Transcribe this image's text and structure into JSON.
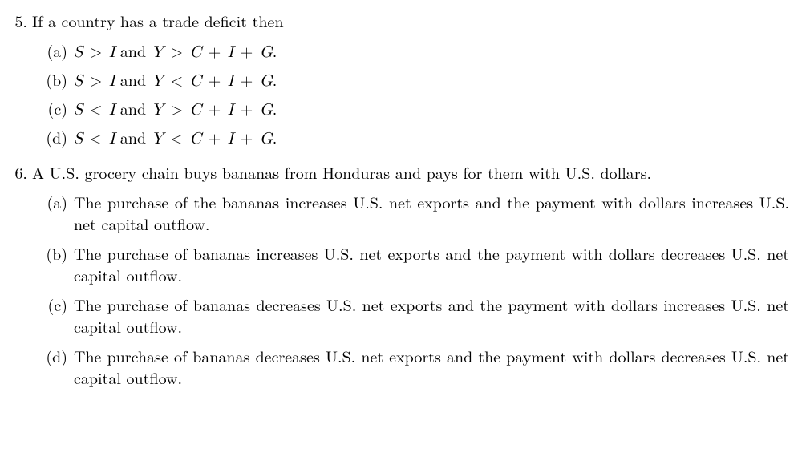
{
  "questions": [
    {
      "number": "5.",
      "stem": "If a country has a trade deficit then",
      "useMath": true,
      "options": [
        {
          "label": "(a)",
          "html": "<span class=\"math\">S <span class=\"rel\">&gt;</span> I</span> <span class=\"and\">and</span> <span class=\"math\">Y <span class=\"rel\">&gt;</span> C <span class=\"rel\">+</span> I <span class=\"rel\">+</span> G</span>."
        },
        {
          "label": "(b)",
          "html": "<span class=\"math\">S <span class=\"rel\">&gt;</span> I</span> <span class=\"and\">and</span> <span class=\"math\">Y <span class=\"rel\">&lt;</span> C <span class=\"rel\">+</span> I <span class=\"rel\">+</span> G</span>."
        },
        {
          "label": "(c)",
          "html": "<span class=\"math\">S <span class=\"rel\">&lt;</span> I</span> <span class=\"and\">and</span> <span class=\"math\">Y <span class=\"rel\">&gt;</span> C <span class=\"rel\">+</span> I <span class=\"rel\">+</span> G</span>."
        },
        {
          "label": "(d)",
          "html": "<span class=\"math\">S <span class=\"rel\">&lt;</span> I</span> <span class=\"and\">and</span> <span class=\"math\">Y <span class=\"rel\">&lt;</span> C <span class=\"rel\">+</span> I <span class=\"rel\">+</span> G</span>."
        }
      ]
    },
    {
      "number": "6.",
      "stem": "A U.S. grocery chain buys bananas from Honduras and pays for them with U.S. dollars.",
      "useMath": false,
      "options": [
        {
          "label": "(a)",
          "text": "The purchase of the bananas increases U.S. net exports and the payment with dollars increases U.S. net capital outflow."
        },
        {
          "label": "(b)",
          "text": "The purchase of bananas increases U.S. net exports and the payment with dollars decreases U.S. net capital outflow."
        },
        {
          "label": "(c)",
          "text": "The purchase of bananas decreases U.S. net exports and the payment with dollars increases U.S. net capital outflow."
        },
        {
          "label": "(d)",
          "text": "The purchase of bananas decreases U.S. net exports and the payment with dollars decreases U.S. net capital outflow."
        }
      ]
    }
  ]
}
